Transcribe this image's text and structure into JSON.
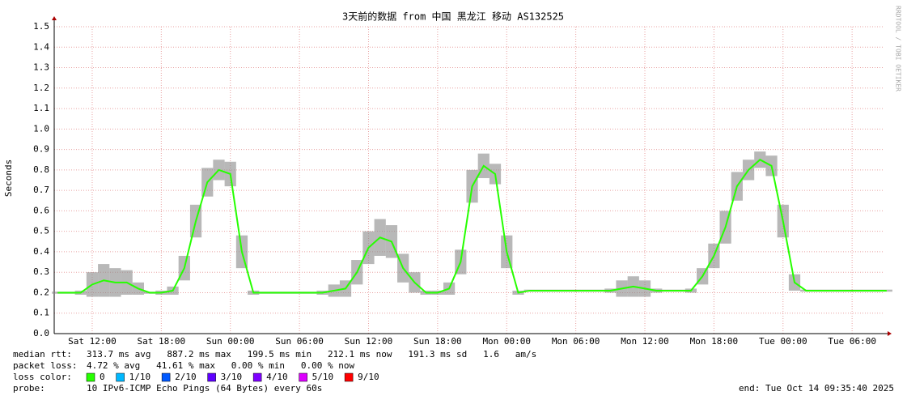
{
  "chart_data": {
    "type": "line",
    "title": "3天前的数据 from 中国 黑龙江 移动 AS132525",
    "ylabel": "Seconds",
    "watermark": "RRDTOOL / TOBI OETIKER",
    "x": [
      9,
      10,
      11,
      12,
      13,
      14,
      15,
      16,
      17,
      18,
      19,
      20,
      21,
      22,
      23,
      24,
      25,
      26,
      27,
      28,
      29,
      30,
      31,
      32,
      33,
      34,
      35,
      36,
      37,
      38,
      39,
      40,
      41,
      42,
      43,
      44,
      45,
      46,
      47,
      48,
      49,
      50,
      51,
      52,
      53,
      54,
      55,
      56,
      57,
      58,
      59,
      60,
      61,
      62,
      63,
      64,
      65,
      66,
      67,
      68,
      69,
      70,
      71,
      72,
      73,
      74,
      75,
      76,
      77,
      78,
      79,
      80,
      81
    ],
    "series": [
      {
        "name": "median rtt",
        "color": "#26ff00",
        "values": [
          0.2,
          0.2,
          0.2,
          0.24,
          0.26,
          0.25,
          0.25,
          0.22,
          0.2,
          0.2,
          0.21,
          0.32,
          0.55,
          0.74,
          0.8,
          0.78,
          0.4,
          0.2,
          0.2,
          0.2,
          0.2,
          0.2,
          0.2,
          0.2,
          0.21,
          0.22,
          0.3,
          0.42,
          0.47,
          0.45,
          0.32,
          0.25,
          0.2,
          0.2,
          0.22,
          0.35,
          0.72,
          0.82,
          0.78,
          0.4,
          0.2,
          0.21,
          0.21,
          0.21,
          0.21,
          0.21,
          0.21,
          0.21,
          0.21,
          0.22,
          0.23,
          0.22,
          0.21,
          0.21,
          0.21,
          0.21,
          0.28,
          0.38,
          0.52,
          0.72,
          0.8,
          0.85,
          0.82,
          0.55,
          0.25,
          0.21,
          0.21,
          0.21,
          0.21,
          0.21,
          0.21,
          0.21,
          0.21
        ],
        "spread": [
          0.005,
          0.005,
          0.01,
          0.06,
          0.08,
          0.07,
          0.06,
          0.03,
          0.005,
          0.01,
          0.02,
          0.06,
          0.08,
          0.07,
          0.05,
          0.06,
          0.08,
          0.01,
          0.005,
          0.005,
          0.005,
          0.005,
          0.005,
          0.01,
          0.03,
          0.04,
          0.06,
          0.08,
          0.09,
          0.08,
          0.07,
          0.05,
          0.01,
          0.01,
          0.03,
          0.06,
          0.08,
          0.06,
          0.05,
          0.08,
          0.01,
          0.005,
          0.005,
          0.005,
          0.005,
          0.005,
          0.005,
          0.005,
          0.01,
          0.04,
          0.05,
          0.04,
          0.01,
          0.005,
          0.005,
          0.01,
          0.04,
          0.06,
          0.08,
          0.07,
          0.05,
          0.04,
          0.05,
          0.08,
          0.04,
          0.005,
          0.005,
          0.005,
          0.005,
          0.005,
          0.005,
          0.005,
          0.005
        ]
      }
    ],
    "xlim": [
      8.7,
      80.8
    ],
    "xticks": [
      {
        "value": 12,
        "label": "Sat 12:00"
      },
      {
        "value": 18,
        "label": "Sat 18:00"
      },
      {
        "value": 24,
        "label": "Sun 00:00"
      },
      {
        "value": 30,
        "label": "Sun 06:00"
      },
      {
        "value": 36,
        "label": "Sun 12:00"
      },
      {
        "value": 42,
        "label": "Sun 18:00"
      },
      {
        "value": 48,
        "label": "Mon 00:00"
      },
      {
        "value": 54,
        "label": "Mon 06:00"
      },
      {
        "value": 60,
        "label": "Mon 12:00"
      },
      {
        "value": 66,
        "label": "Mon 18:00"
      },
      {
        "value": 72,
        "label": "Tue 00:00"
      },
      {
        "value": 78,
        "label": "Tue 06:00"
      }
    ],
    "ylim": [
      0,
      1.5
    ],
    "yticks": [
      {
        "value": 0,
        "label": "0.0"
      },
      0.1,
      0.2,
      0.3,
      0.4,
      0.5,
      0.6,
      0.7,
      0.8,
      0.9,
      {
        "value": 1,
        "label": "1.0"
      },
      1.1,
      1.2,
      1.3,
      1.4,
      1.5
    ],
    "grid": true
  },
  "legend": {
    "rows": [
      {
        "label": "median rtt:",
        "text": "313.7 ms avg   887.2 ms max   199.5 ms min   212.1 ms now   191.3 ms sd   1.6   am/s"
      },
      {
        "label": "packet loss:",
        "text": "4.72 % avg   41.61 % max   0.00 % min   0.00 % now"
      }
    ],
    "loss_label": "loss color:",
    "loss_colors": [
      {
        "name": "0",
        "color": "#26ff00"
      },
      {
        "name": "1/10",
        "color": "#00b8ff"
      },
      {
        "name": "2/10",
        "color": "#0059ff"
      },
      {
        "name": "3/10",
        "color": "#5e00ff"
      },
      {
        "name": "4/10",
        "color": "#7e00ff"
      },
      {
        "name": "5/10",
        "color": "#dd00ff"
      },
      {
        "name": "9/10",
        "color": "#ff0000"
      }
    ],
    "probe_label": "probe:",
    "probe": "10 IPv6-ICMP Echo Pings (64 Bytes) every 60s",
    "end": "end: Tue Oct 14 09:35:40 2025"
  }
}
